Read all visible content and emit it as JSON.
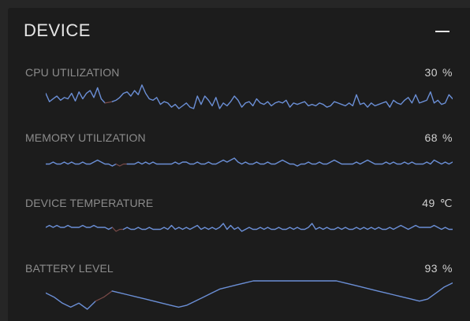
{
  "panel": {
    "title": "DEVICE",
    "minimize_icon": "minimize-icon"
  },
  "metrics": [
    {
      "label": "CPU UTILIZATION",
      "value": "30",
      "unit": "%",
      "color": "#6b8fd6",
      "scale": [
        0,
        100
      ],
      "history": [
        44,
        32,
        36,
        40,
        34,
        38,
        36,
        44,
        33,
        46,
        36,
        44,
        48,
        38,
        52,
        36,
        30,
        31,
        32,
        34,
        38,
        44,
        46,
        40,
        48,
        42,
        56,
        44,
        36,
        34,
        38,
        28,
        32,
        30,
        24,
        28,
        22,
        26,
        30,
        24,
        22,
        40,
        28,
        40,
        34,
        26,
        38,
        22,
        30,
        26,
        32,
        40,
        34,
        24,
        30,
        32,
        26,
        36,
        30,
        28,
        32,
        26,
        30,
        32,
        30,
        34,
        24,
        30,
        28,
        30,
        32,
        26,
        28,
        26,
        30,
        28,
        24,
        26,
        32,
        30,
        28,
        26,
        30,
        26,
        42,
        28,
        30,
        24,
        30,
        26,
        28,
        30,
        32,
        24,
        34,
        30,
        28,
        34,
        38,
        30,
        42,
        30,
        32,
        34,
        46,
        30,
        34,
        28,
        30,
        42,
        36
      ],
      "gap": [
        16,
        18
      ]
    },
    {
      "label": "MEMORY UTILIZATION",
      "value": "68",
      "unit": "%",
      "color": "#6b8fd6",
      "scale": [
        0,
        100
      ],
      "history": [
        68,
        68,
        69,
        68,
        68,
        69,
        68,
        69,
        68,
        68,
        69,
        68,
        68,
        69,
        70,
        69,
        68,
        68,
        67,
        68,
        67,
        68,
        68,
        68,
        68,
        69,
        68,
        69,
        68,
        69,
        68,
        68,
        68,
        68,
        68,
        69,
        68,
        69,
        69,
        68,
        68,
        69,
        68,
        68,
        69,
        68,
        68,
        69,
        70,
        69,
        70,
        71,
        69,
        68,
        69,
        68,
        68,
        69,
        68,
        68,
        69,
        68,
        68,
        69,
        70,
        69,
        68,
        68,
        67,
        68,
        68,
        69,
        68,
        68,
        69,
        68,
        68,
        69,
        70,
        69,
        68,
        68,
        68,
        68,
        69,
        68,
        69,
        70,
        69,
        68,
        68,
        68,
        69,
        68,
        69,
        68,
        68,
        69,
        68,
        69,
        68,
        68,
        68,
        69,
        68,
        70,
        69,
        68,
        69,
        68,
        69
      ],
      "gap": [
        19,
        22
      ]
    },
    {
      "label": "DEVICE TEMPERATURE",
      "value": "49",
      "unit": "℃",
      "color": "#6b8fd6",
      "scale": [
        0,
        100
      ],
      "history": [
        50,
        51,
        50,
        51,
        50,
        50,
        51,
        50,
        50,
        50,
        51,
        50,
        50,
        51,
        50,
        50,
        50,
        49,
        50,
        48,
        49,
        49,
        50,
        49,
        49,
        50,
        49,
        49,
        50,
        49,
        49,
        49,
        50,
        49,
        51,
        49,
        50,
        49,
        50,
        49,
        50,
        51,
        49,
        50,
        49,
        50,
        49,
        50,
        52,
        49,
        51,
        49,
        50,
        48,
        49,
        50,
        49,
        49,
        50,
        49,
        50,
        49,
        49,
        50,
        49,
        49,
        50,
        49,
        50,
        49,
        49,
        50,
        52,
        49,
        50,
        49,
        50,
        49,
        49,
        50,
        49,
        50,
        49,
        49,
        50,
        49,
        50,
        49,
        50,
        49,
        50,
        49,
        49,
        50,
        49,
        50,
        51,
        50,
        49,
        50,
        51,
        50,
        50,
        50,
        50,
        51,
        50,
        49,
        50,
        49,
        49
      ],
      "gap": [
        18,
        21
      ]
    },
    {
      "label": "BATTERY LEVEL",
      "value": "93",
      "unit": "%",
      "color": "#6b8fd6",
      "scale": [
        40,
        100
      ],
      "history": [
        88,
        86,
        83,
        81,
        83,
        80,
        84,
        86,
        89,
        88,
        87,
        86,
        85,
        84,
        83,
        82,
        81,
        82,
        84,
        86,
        88,
        90,
        91,
        92,
        93,
        94,
        94,
        94,
        94,
        94,
        94,
        94,
        94,
        94,
        94,
        94,
        93,
        92,
        91,
        90,
        89,
        88,
        87,
        86,
        85,
        84,
        85,
        88,
        91,
        93
      ],
      "gap": [
        6,
        8
      ]
    }
  ]
}
